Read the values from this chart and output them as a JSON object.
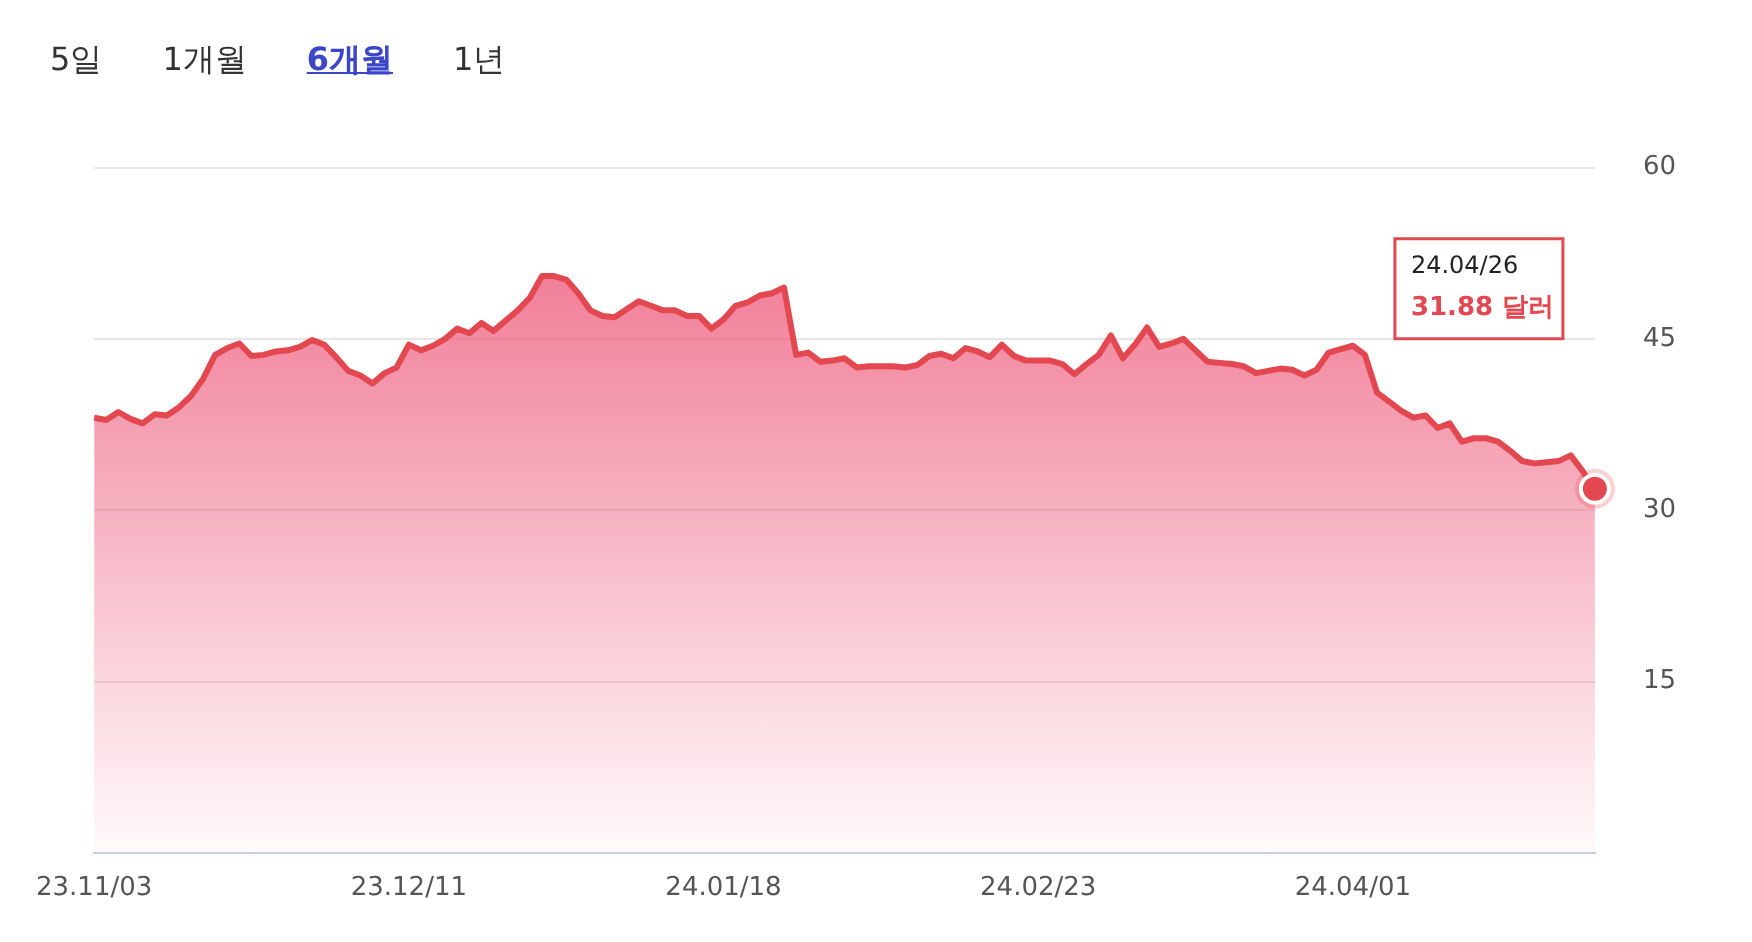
{
  "chart_data": {
    "type": "area",
    "categories": [
      "23.11/03",
      null,
      null,
      null,
      null,
      null,
      null,
      null,
      null,
      null,
      null,
      null,
      null,
      null,
      null,
      null,
      null,
      null,
      null,
      null,
      null,
      null,
      null,
      null,
      null,
      null,
      "23.12/11",
      null,
      null,
      null,
      null,
      null,
      null,
      null,
      null,
      null,
      null,
      null,
      null,
      null,
      null,
      null,
      null,
      null,
      null,
      null,
      null,
      null,
      null,
      null,
      null,
      null,
      "24.01/18",
      null,
      null,
      null,
      null,
      null,
      null,
      null,
      null,
      null,
      null,
      null,
      null,
      null,
      null,
      null,
      null,
      null,
      null,
      null,
      null,
      null,
      null,
      null,
      null,
      null,
      "24.02/23",
      null,
      null,
      null,
      null,
      null,
      null,
      null,
      null,
      null,
      null,
      null,
      null,
      null,
      null,
      null,
      null,
      null,
      null,
      null,
      null,
      null,
      null,
      null,
      null,
      null,
      "24.04/01",
      null,
      null,
      null,
      null,
      null,
      null,
      null,
      null,
      null,
      null,
      null,
      null,
      null,
      null,
      null,
      null,
      null,
      null,
      null,
      null
    ],
    "series": [
      {
        "color": "#e34850",
        "values": [
          38.1,
          37.9,
          38.6,
          38.0,
          37.6,
          38.4,
          38.3,
          39.0,
          40.0,
          41.5,
          43.6,
          44.2,
          44.6,
          43.5,
          43.6,
          43.9,
          44.0,
          44.3,
          44.9,
          44.5,
          43.4,
          42.2,
          41.8,
          41.1,
          42.0,
          42.5,
          44.5,
          44.0,
          44.4,
          45.0,
          45.9,
          45.5,
          46.4,
          45.7,
          46.6,
          47.5,
          48.6,
          50.5,
          50.5,
          50.2,
          49.0,
          47.5,
          47.0,
          46.9,
          47.6,
          48.3,
          47.9,
          47.5,
          47.5,
          47.0,
          47.0,
          45.9,
          46.7,
          47.9,
          48.2,
          48.8,
          49.0,
          49.5,
          43.6,
          43.8,
          43.0,
          43.1,
          43.3,
          42.5,
          42.6,
          42.6,
          42.6,
          42.5,
          42.7,
          43.5,
          43.7,
          43.3,
          44.2,
          43.9,
          43.4,
          44.5,
          43.5,
          43.1,
          43.1,
          43.1,
          42.8,
          41.9,
          42.8,
          43.6,
          45.3,
          43.3,
          44.5,
          46.0,
          44.3,
          44.6,
          45.0,
          44.0,
          43.0,
          42.9,
          42.8,
          42.6,
          42.0,
          42.2,
          42.4,
          42.3,
          41.8,
          42.3,
          43.8,
          44.1,
          44.4,
          43.6,
          40.3,
          39.5,
          38.7,
          38.1,
          38.3,
          37.2,
          37.6,
          36.0,
          36.3,
          36.3,
          36.0,
          35.2,
          34.3,
          34.1,
          34.2,
          34.3,
          34.8,
          33.4,
          31.88
        ]
      }
    ],
    "ylim": [
      0,
      60
    ],
    "yticks": [
      15,
      30,
      45,
      60
    ],
    "grid": "y",
    "legend": false,
    "marker": "none",
    "line_style": "solid",
    "annotations": [
      "5일",
      "1개월",
      "6개월",
      "1년",
      "24.04/26\n31.88 달러"
    ]
  }
}
